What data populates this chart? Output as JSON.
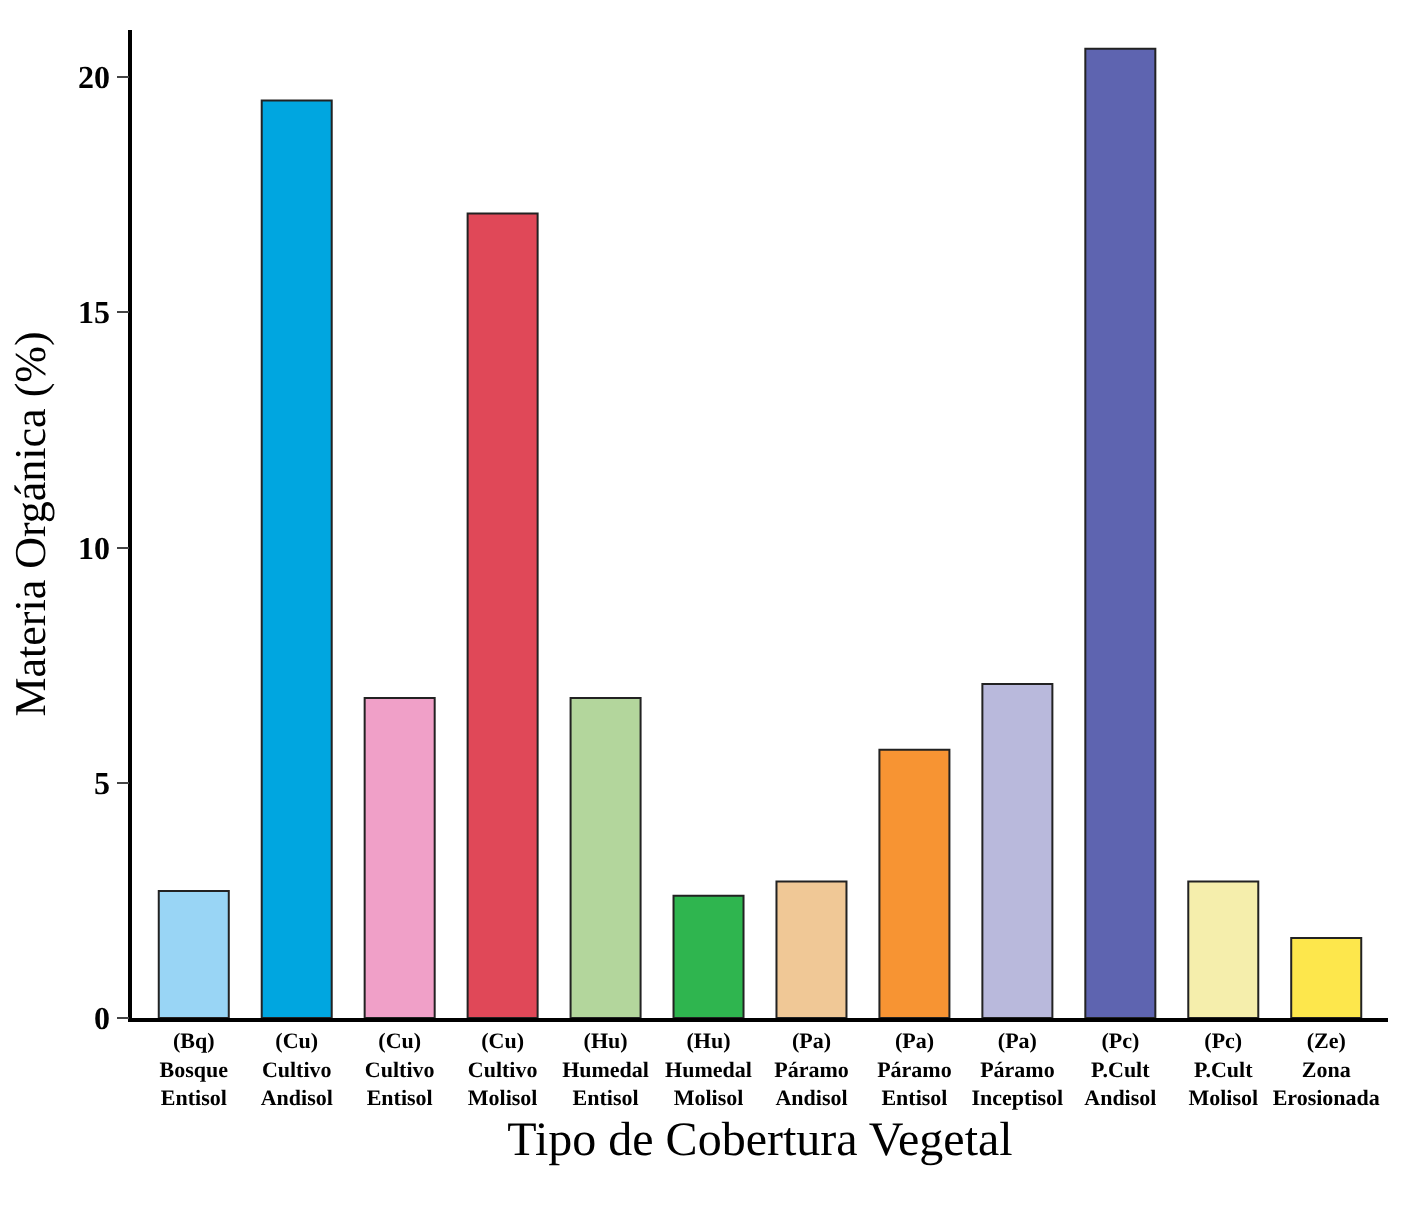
{
  "chart_data": {
    "type": "bar",
    "xlabel": "Tipo de Cobertura Vegetal",
    "ylabel": "Materia Orgánica (%)",
    "categories": [
      "(Bq)\nBosque\nEntisol",
      "(Cu)\nCultivo\nAndisol",
      "(Cu)\nCultivo\nEntisol",
      "(Cu)\nCultivo\nMolisol",
      "(Hu)\nHumedal\nEntisol",
      "(Hu)\nHumedal\nMolisol",
      "(Pa)\nPáramo\nAndisol",
      "(Pa)\nPáramo\nEntisol",
      "(Pa)\nPáramo\nInceptisol",
      "(Pc)\nP.Cult\nAndisol",
      "(Pc)\nP.Cult\nMolisol",
      "(Ze)\nZona\nErosionada"
    ],
    "values": [
      2.7,
      19.5,
      6.8,
      17.1,
      6.8,
      2.6,
      2.9,
      5.7,
      7.1,
      20.6,
      2.9,
      1.7
    ],
    "colors": [
      "#99d5f5",
      "#00a6e0",
      "#f0a0c8",
      "#e04858",
      "#b3d69c",
      "#2fb54f",
      "#f0c896",
      "#f79433",
      "#b9b9dc",
      "#5e64b0",
      "#f5eeac",
      "#fde74c"
    ],
    "ylim": [
      0,
      21
    ],
    "yticks": [
      0,
      5,
      10,
      15,
      20
    ],
    "grid": false,
    "legend": false
  }
}
